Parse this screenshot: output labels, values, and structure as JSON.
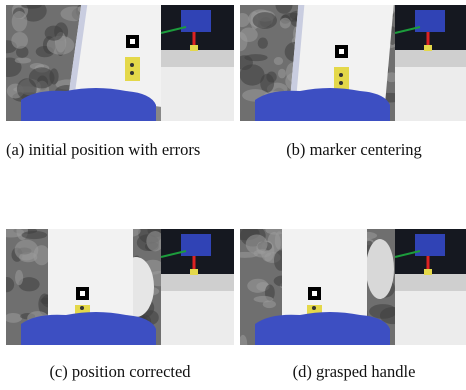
{
  "figure": {
    "subfigures": [
      {
        "label": "(a)",
        "caption": "initial position with errors"
      },
      {
        "label": "(b)",
        "caption": "marker centering"
      },
      {
        "label": "(c)",
        "caption": "position corrected"
      },
      {
        "label": "(d)",
        "caption": "grasped handle"
      }
    ]
  }
}
